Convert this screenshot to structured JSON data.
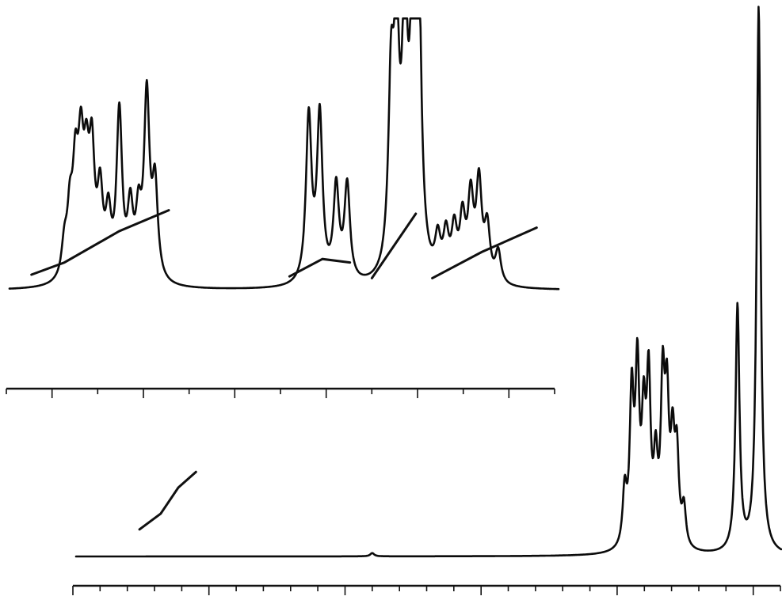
{
  "chart_data": [
    {
      "type": "line",
      "title": "",
      "xlabel": "",
      "ylabel": "",
      "x_direction": "decreasing-left-to-right",
      "grid": false,
      "legend": "none",
      "axis_tick_count": 12,
      "y_relative_range": [
        0,
        1
      ],
      "peaks": [
        {
          "x": 0.1,
          "y": 0.12
        },
        {
          "x": 0.11,
          "y": 0.22
        },
        {
          "x": 0.12,
          "y": 0.36
        },
        {
          "x": 0.13,
          "y": 0.42
        },
        {
          "x": 0.14,
          "y": 0.34
        },
        {
          "x": 0.15,
          "y": 0.43
        },
        {
          "x": 0.165,
          "y": 0.3
        },
        {
          "x": 0.18,
          "y": 0.22
        },
        {
          "x": 0.2,
          "y": 0.62
        },
        {
          "x": 0.22,
          "y": 0.25
        },
        {
          "x": 0.235,
          "y": 0.22
        },
        {
          "x": 0.25,
          "y": 0.68
        },
        {
          "x": 0.265,
          "y": 0.35
        },
        {
          "x": 0.545,
          "y": 0.62
        },
        {
          "x": 0.565,
          "y": 0.62
        },
        {
          "x": 0.595,
          "y": 0.35
        },
        {
          "x": 0.615,
          "y": 0.36
        },
        {
          "x": 0.695,
          "y": 0.66
        },
        {
          "x": 0.705,
          "y": 0.8
        },
        {
          "x": 0.72,
          "y": 0.9
        },
        {
          "x": 0.735,
          "y": 0.98
        },
        {
          "x": 0.745,
          "y": 1.0
        },
        {
          "x": 0.78,
          "y": 0.14
        },
        {
          "x": 0.795,
          "y": 0.16
        },
        {
          "x": 0.81,
          "y": 0.18
        },
        {
          "x": 0.825,
          "y": 0.22
        },
        {
          "x": 0.84,
          "y": 0.3
        },
        {
          "x": 0.855,
          "y": 0.36
        },
        {
          "x": 0.87,
          "y": 0.2
        },
        {
          "x": 0.89,
          "y": 0.12
        }
      ],
      "integral": [
        {
          "x": 0.04,
          "y": 0.05
        },
        {
          "x": 0.1,
          "y": 0.12
        },
        {
          "x": 0.2,
          "y": 0.3
        },
        {
          "x": 0.29,
          "y": 0.42
        },
        {
          "x": 0.51,
          "y": 0.04
        },
        {
          "x": 0.57,
          "y": 0.14
        },
        {
          "x": 0.62,
          "y": 0.12
        },
        {
          "x": 0.66,
          "y": 0.03
        },
        {
          "x": 0.74,
          "y": 0.4
        },
        {
          "x": 0.77,
          "y": 0.03
        },
        {
          "x": 0.86,
          "y": 0.18
        },
        {
          "x": 0.96,
          "y": 0.32
        }
      ]
    },
    {
      "type": "line",
      "title": "",
      "xlabel": "",
      "ylabel": "",
      "x_direction": "decreasing-left-to-right",
      "grid": false,
      "legend": "none",
      "axis_tick_count": 26,
      "y_relative_range": [
        0,
        1
      ],
      "peaks": [
        {
          "x": 0.42,
          "y": 0.006
        },
        {
          "x": 0.778,
          "y": 0.1
        },
        {
          "x": 0.788,
          "y": 0.27
        },
        {
          "x": 0.796,
          "y": 0.31
        },
        {
          "x": 0.805,
          "y": 0.21
        },
        {
          "x": 0.812,
          "y": 0.29
        },
        {
          "x": 0.822,
          "y": 0.14
        },
        {
          "x": 0.832,
          "y": 0.28
        },
        {
          "x": 0.838,
          "y": 0.24
        },
        {
          "x": 0.846,
          "y": 0.17
        },
        {
          "x": 0.852,
          "y": 0.16
        },
        {
          "x": 0.862,
          "y": 0.07
        },
        {
          "x": 0.938,
          "y": 0.45
        },
        {
          "x": 0.968,
          "y": 1.0
        }
      ],
      "integral": [
        {
          "x": 0.09,
          "y": 0.04
        },
        {
          "x": 0.12,
          "y": 0.1
        },
        {
          "x": 0.145,
          "y": 0.2
        },
        {
          "x": 0.17,
          "y": 0.26
        }
      ]
    }
  ]
}
